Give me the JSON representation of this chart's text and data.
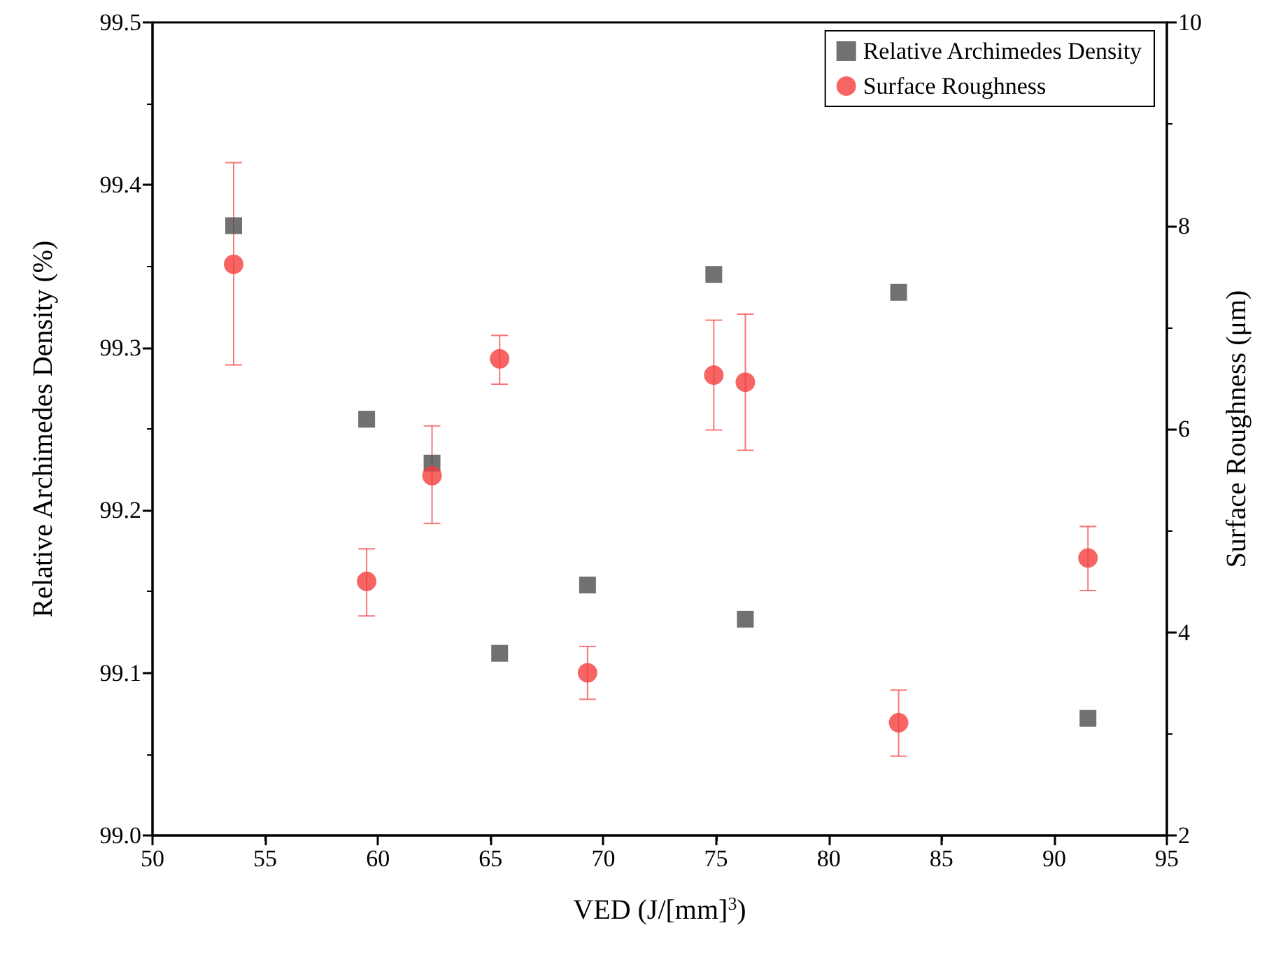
{
  "chart_data": {
    "type": "scatter",
    "xlabel": "VED (J/[mm]$^{3}$)",
    "ylabel": "Relative Archimedes Density (%)",
    "y2label": "Surface Roughness (μm)",
    "xlim": [
      50,
      95
    ],
    "xticks": [
      50,
      55,
      60,
      65,
      70,
      75,
      80,
      85,
      90,
      95
    ],
    "ylim": [
      99.0,
      99.5
    ],
    "yticks": [
      {
        "value": 99.0,
        "label": "99.0"
      },
      99.1,
      99.2,
      99.3,
      99.4,
      99.5
    ],
    "y2lim": [
      2,
      10
    ],
    "y2ticks": [
      2,
      4,
      6,
      8,
      10
    ],
    "grid": false,
    "legend": "top right",
    "series": [
      {
        "name": "Relative Archimedes Density",
        "color": "#4d4d4d",
        "marker": "square",
        "x": [
          53.6,
          59.5,
          62.4,
          65.4,
          69.3,
          74.9,
          76.3,
          83.1,
          91.5
        ],
        "values": [
          99.375,
          99.256,
          99.229,
          99.112,
          99.154,
          99.345,
          99.133,
          99.334,
          99.072
        ]
      },
      {
        "name": "Surface Roughness",
        "color": "#f53d3d",
        "marker": "circle",
        "axis": "y2",
        "x": [
          53.6,
          59.5,
          62.4,
          65.4,
          69.3,
          74.9,
          76.3,
          83.1,
          91.5
        ],
        "values": [
          7.62,
          4.5,
          5.54,
          6.69,
          3.6,
          6.53,
          6.46,
          3.11,
          4.73
        ],
        "errors": [
          [
            6.63,
            8.62
          ],
          [
            4.16,
            4.82
          ],
          [
            5.07,
            6.03
          ],
          [
            6.44,
            6.92
          ],
          [
            3.34,
            3.86
          ],
          [
            5.99,
            7.07
          ],
          [
            5.79,
            7.13
          ],
          [
            2.78,
            3.43
          ],
          [
            4.41,
            5.04
          ]
        ]
      }
    ]
  }
}
